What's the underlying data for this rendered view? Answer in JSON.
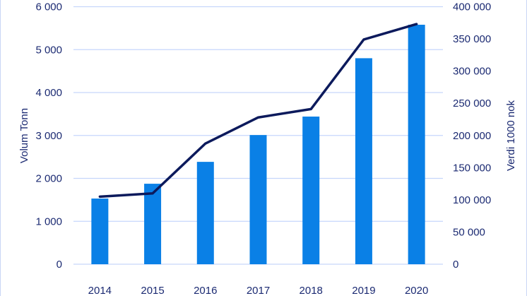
{
  "chart_data": {
    "type": "bar+line",
    "categories": [
      "2014",
      "2015",
      "2016",
      "2017",
      "2018",
      "2019",
      "2020"
    ],
    "series": [
      {
        "name": "Volum Tonn",
        "type": "bar",
        "axis": "left",
        "values": [
          1530,
          1875,
          2385,
          3010,
          3440,
          4800,
          5580
        ]
      },
      {
        "name": "Verdi 1000 nok",
        "type": "line",
        "axis": "right",
        "values": [
          105000,
          110000,
          187500,
          228000,
          241000,
          349000,
          373000
        ]
      }
    ],
    "ylabel": "Volum Tonn",
    "y2label": "Verdi 1000 nok",
    "ylim": [
      0,
      6000
    ],
    "y2lim": [
      0,
      400000
    ],
    "yticks": [
      "0",
      "1 000",
      "2 000",
      "3 000",
      "4 000",
      "5 000",
      "6 000"
    ],
    "y2ticks": [
      "0",
      "50 000",
      "100 000",
      "150 000",
      "200 000",
      "250 000",
      "300 000",
      "350 000",
      "400 000"
    ],
    "grid": true,
    "colors": {
      "bar": "#0a80e6",
      "line": "#0c1a5c",
      "text": "#1b2a72",
      "grid": "#c6d6fb"
    }
  }
}
